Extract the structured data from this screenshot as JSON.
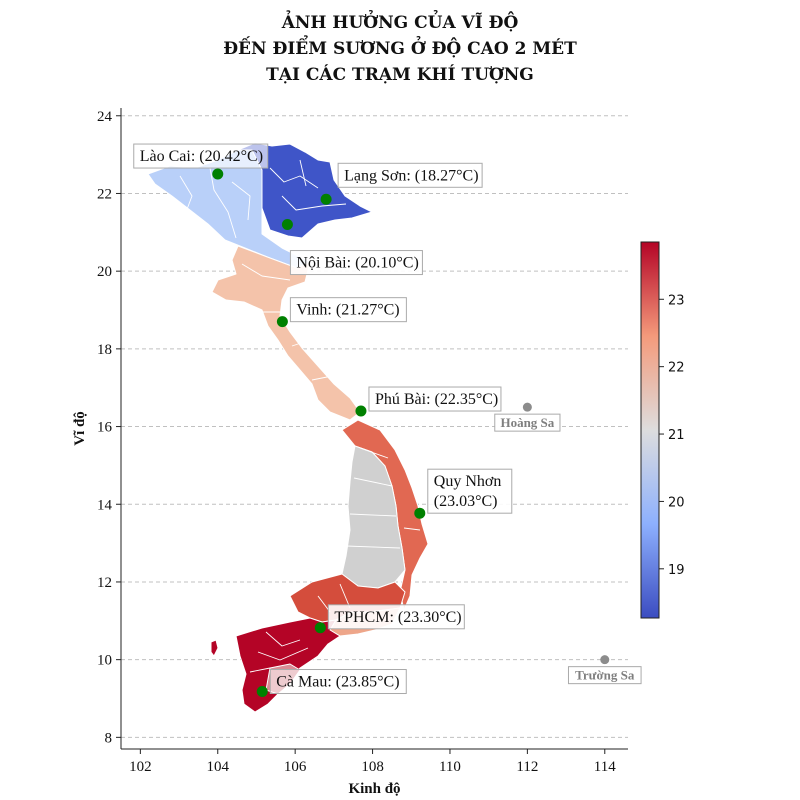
{
  "title": {
    "line1": "ẢNH HƯỞNG CỦA VĨ ĐỘ",
    "line2": "ĐẾN ĐIỂM SƯƠNG Ở ĐỘ CAO 2 MÉT",
    "line3": "TẠI CÁC TRẠM KHÍ TƯỢNG"
  },
  "axes": {
    "xlabel": "Kinh độ",
    "ylabel": "Vĩ độ",
    "x_ticks": [
      "102",
      "104",
      "106",
      "108",
      "110",
      "112",
      "114"
    ],
    "y_ticks": [
      "8",
      "10",
      "12",
      "14",
      "16",
      "18",
      "20",
      "22",
      "24"
    ],
    "xlim": [
      101.5,
      114.6
    ],
    "ylim": [
      7.7,
      24.2
    ],
    "grid": "horizontal dashed"
  },
  "colorbar": {
    "ticks": [
      "19",
      "20",
      "21",
      "22",
      "23"
    ],
    "range": [
      18.27,
      23.85
    ],
    "colormap": "coolwarm"
  },
  "stations": [
    {
      "name": "Lào Cai",
      "label": "Lào Cai: (20.42°C)",
      "lon": 104.0,
      "lat": 22.5,
      "value": 20.42
    },
    {
      "name": "Lạng Sơn",
      "label": "Lạng Sơn: (18.27°C)",
      "lon": 106.8,
      "lat": 21.85,
      "value": 18.27
    },
    {
      "name": "Nội Bài",
      "label": "Nội Bài: (20.10°C)",
      "lon": 105.8,
      "lat": 21.2,
      "value": 20.1
    },
    {
      "name": "Vinh",
      "label": "Vinh: (21.27°C)",
      "lon": 105.67,
      "lat": 18.7,
      "value": 21.27
    },
    {
      "name": "Phú Bài",
      "label": "Phú Bài: (22.35°C)",
      "lon": 107.7,
      "lat": 16.4,
      "value": 22.35
    },
    {
      "name": "Quy Nhơn",
      "label": "Quy Nhơn",
      "label2": "(23.03°C)",
      "lon": 109.22,
      "lat": 13.77,
      "value": 23.03
    },
    {
      "name": "TPHCM",
      "label": "TPHCM: (23.30°C)",
      "lon": 106.65,
      "lat": 10.82,
      "value": 23.3
    },
    {
      "name": "Cà Mau",
      "label": "Cà Mau: (23.85°C)",
      "lon": 105.15,
      "lat": 9.18,
      "value": 23.85
    }
  ],
  "islands": [
    {
      "name": "Hoàng Sa",
      "lon": 112.0,
      "lat": 16.5
    },
    {
      "name": "Trường Sa",
      "lon": 114.0,
      "lat": 10.0
    }
  ],
  "colors": {
    "station_marker": "#008000",
    "island_marker": "#8c8c8c",
    "grid": "#c0c0c0",
    "region_northwest": "#b9d0f9",
    "region_northeast": "#3f55c8",
    "region_north_central": "#f4c3aa",
    "region_south_central_coast": "#e16852",
    "region_highlands": "#d0d0d0",
    "region_southeast": "#d44d3c",
    "region_mekong": "#b40426",
    "region_hcm_east": "#eea68a"
  }
}
